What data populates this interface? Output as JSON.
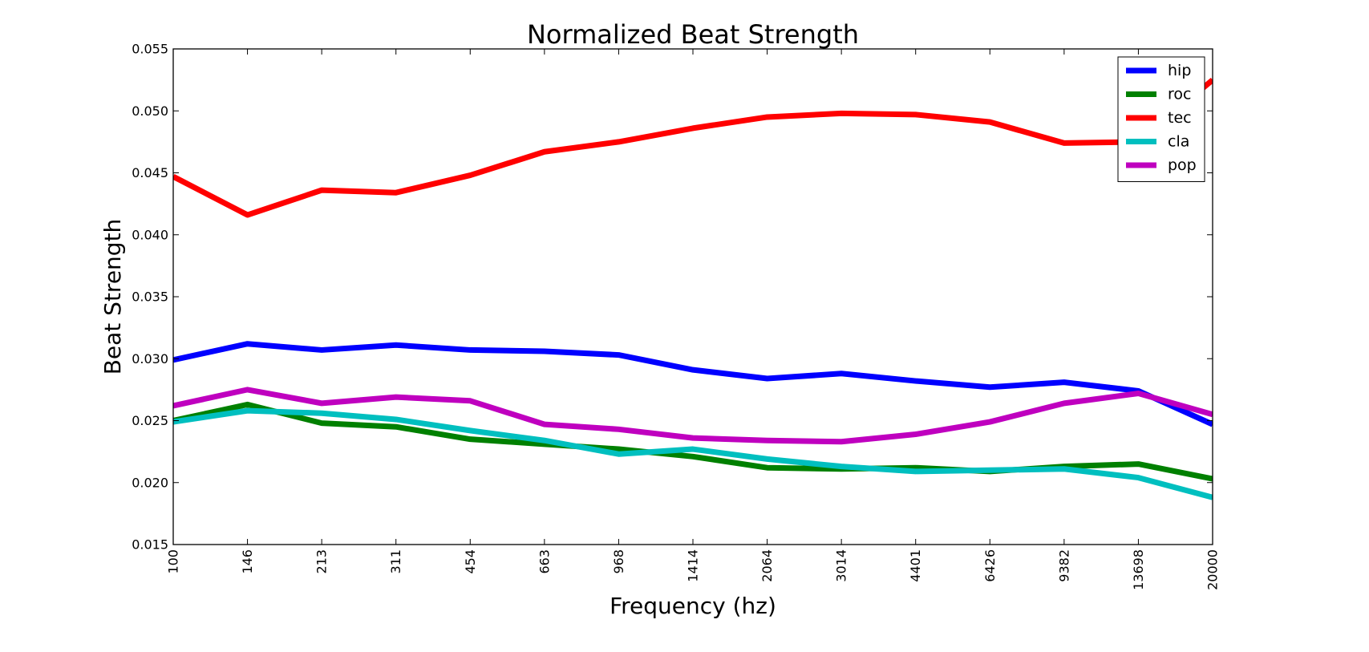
{
  "chart_data": {
    "type": "line",
    "title": "Normalized Beat Strength",
    "xlabel": "Frequency (hz)",
    "ylabel": "Beat Strength",
    "categories": [
      "100",
      "146",
      "213",
      "311",
      "454",
      "663",
      "968",
      "1414",
      "2064",
      "3014",
      "4401",
      "6426",
      "9382",
      "13698",
      "20000"
    ],
    "yticks": [
      "0.015",
      "0.020",
      "0.025",
      "0.030",
      "0.035",
      "0.040",
      "0.045",
      "0.050",
      "0.055"
    ],
    "ylim": [
      0.015,
      0.055
    ],
    "grid": false,
    "legend_position": "top-right",
    "series": [
      {
        "name": "hip",
        "color": "#0000ff",
        "values": [
          0.0299,
          0.0312,
          0.0307,
          0.0311,
          0.0307,
          0.0306,
          0.0303,
          0.0291,
          0.0284,
          0.0288,
          0.0282,
          0.0277,
          0.0281,
          0.0274,
          0.0247
        ]
      },
      {
        "name": "roc",
        "color": "#008000",
        "values": [
          0.025,
          0.0263,
          0.0248,
          0.0245,
          0.0235,
          0.0231,
          0.0227,
          0.0221,
          0.0212,
          0.0211,
          0.0212,
          0.0209,
          0.0213,
          0.0215,
          0.0203
        ]
      },
      {
        "name": "tec",
        "color": "#ff0000",
        "values": [
          0.0447,
          0.0416,
          0.0436,
          0.0434,
          0.0448,
          0.0467,
          0.0475,
          0.0486,
          0.0495,
          0.0498,
          0.0497,
          0.0491,
          0.0474,
          0.0475,
          0.0525
        ]
      },
      {
        "name": "cla",
        "color": "#00bfbf",
        "values": [
          0.0249,
          0.0258,
          0.0256,
          0.0251,
          0.0242,
          0.0234,
          0.0223,
          0.0227,
          0.0219,
          0.0213,
          0.0209,
          0.021,
          0.0211,
          0.0204,
          0.0188
        ]
      },
      {
        "name": "pop",
        "color": "#bf00bf",
        "values": [
          0.0262,
          0.0275,
          0.0264,
          0.0269,
          0.0266,
          0.0247,
          0.0243,
          0.0236,
          0.0234,
          0.0233,
          0.0239,
          0.0249,
          0.0264,
          0.0272,
          0.0255
        ]
      }
    ]
  }
}
